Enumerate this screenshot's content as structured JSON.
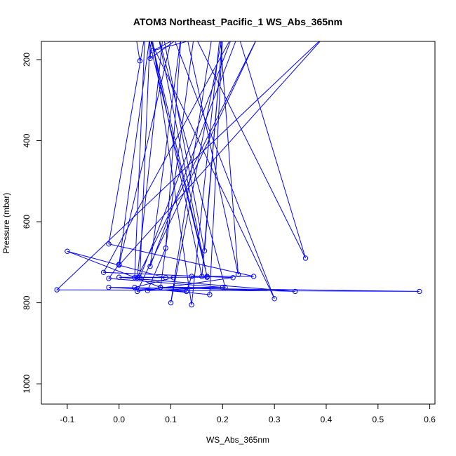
{
  "chart_data": {
    "type": "line",
    "title": "ATOM3 Northeast_Pacific_1 WS_Abs_365nm",
    "xlabel": "WS_Abs_365nm",
    "ylabel": "Pressure (mbar)",
    "xlim": [
      -0.15,
      0.61
    ],
    "ylim": [
      1050,
      155
    ],
    "y_axis_inverted": true,
    "x_ticks": [
      -0.1,
      0.0,
      0.1,
      0.2,
      0.3,
      0.4,
      0.5,
      0.6
    ],
    "x_tick_labels": [
      "-0.1",
      "0.0",
      "0.1",
      "0.2",
      "0.3",
      "0.4",
      "0.5",
      "0.6"
    ],
    "y_ticks": [
      200,
      400,
      600,
      800,
      1000
    ],
    "y_tick_labels": [
      "200",
      "400",
      "600",
      "800",
      "1000"
    ],
    "grid": false,
    "legend": "none",
    "series_color": "#0000ff",
    "series": [
      {
        "points": [
          {
            "x": 0.04,
            "y": 203,
            "marker": true
          },
          {
            "x": 0.032,
            "y": 138,
            "marker": false
          },
          {
            "x": 0.13,
            "y": 138,
            "marker": false
          },
          {
            "x": 0.23,
            "y": 730,
            "marker": true
          },
          {
            "x": 0.195,
            "y": 138,
            "marker": false
          },
          {
            "x": 0.14,
            "y": 805,
            "marker": true
          },
          {
            "x": 0.063,
            "y": 138,
            "marker": false
          },
          {
            "x": 0.06,
            "y": 197,
            "marker": true
          },
          {
            "x": 0.125,
            "y": 138,
            "marker": false
          },
          {
            "x": 0.065,
            "y": 178,
            "marker": true
          },
          {
            "x": 0.18,
            "y": 138,
            "marker": false
          },
          {
            "x": 0.1,
            "y": 800,
            "marker": true
          },
          {
            "x": 0.2,
            "y": 138,
            "marker": false
          },
          {
            "x": 0.16,
            "y": 735,
            "marker": true
          },
          {
            "x": 0.06,
            "y": 138,
            "marker": false
          },
          {
            "x": 0.17,
            "y": 735,
            "marker": true
          },
          {
            "x": 0.055,
            "y": 138,
            "marker": false
          },
          {
            "x": 0.3,
            "y": 790,
            "marker": true
          },
          {
            "x": 0.103,
            "y": 138,
            "marker": false
          },
          {
            "x": 0.0,
            "y": 707,
            "marker": true
          },
          {
            "x": 0.4,
            "y": 138,
            "marker": false
          },
          {
            "x": -0.12,
            "y": 768,
            "marker": true
          },
          {
            "x": 0.58,
            "y": 772,
            "marker": true
          },
          {
            "x": -0.02,
            "y": 762,
            "marker": true
          },
          {
            "x": 0.13,
            "y": 772,
            "marker": true
          },
          {
            "x": 0.14,
            "y": 735,
            "marker": true
          },
          {
            "x": 0.26,
            "y": 735,
            "marker": true
          },
          {
            "x": -0.02,
            "y": 655,
            "marker": true
          },
          {
            "x": 0.05,
            "y": 138,
            "marker": false
          },
          {
            "x": 0.03,
            "y": 738,
            "marker": true
          },
          {
            "x": 0.09,
            "y": 738,
            "marker": true
          },
          {
            "x": -0.1,
            "y": 673,
            "marker": true
          },
          {
            "x": 0.08,
            "y": 762,
            "marker": true
          },
          {
            "x": 0.34,
            "y": 772,
            "marker": true
          },
          {
            "x": 0.0,
            "y": 737,
            "marker": true
          },
          {
            "x": 0.17,
            "y": 737,
            "marker": true
          },
          {
            "x": 0.075,
            "y": 138,
            "marker": false
          },
          {
            "x": 0.205,
            "y": 762,
            "marker": true
          },
          {
            "x": 0.08,
            "y": 762,
            "marker": true
          },
          {
            "x": 0.145,
            "y": 138,
            "marker": false
          },
          {
            "x": 0.36,
            "y": 690,
            "marker": true
          },
          {
            "x": 0.23,
            "y": 138,
            "marker": false
          },
          {
            "x": 0.06,
            "y": 710,
            "marker": true
          },
          {
            "x": 0.12,
            "y": 138,
            "marker": false
          },
          {
            "x": 0.09,
            "y": 665,
            "marker": true
          },
          {
            "x": 0.055,
            "y": 770,
            "marker": true
          },
          {
            "x": 0.2,
            "y": 762,
            "marker": true
          },
          {
            "x": -0.02,
            "y": 740,
            "marker": true
          },
          {
            "x": 0.0,
            "y": 705,
            "marker": true
          },
          {
            "x": 0.06,
            "y": 138,
            "marker": false
          },
          {
            "x": 0.04,
            "y": 738,
            "marker": true
          },
          {
            "x": 0.22,
            "y": 138,
            "marker": false
          },
          {
            "x": -0.03,
            "y": 725,
            "marker": true
          },
          {
            "x": 0.22,
            "y": 738,
            "marker": true
          },
          {
            "x": 0.035,
            "y": 772,
            "marker": true
          },
          {
            "x": 0.27,
            "y": 138,
            "marker": false
          },
          {
            "x": 0.035,
            "y": 738,
            "marker": true
          },
          {
            "x": 0.085,
            "y": 138,
            "marker": false
          },
          {
            "x": 0.165,
            "y": 672,
            "marker": true
          },
          {
            "x": 0.2,
            "y": 138,
            "marker": false
          },
          {
            "x": 0.175,
            "y": 780,
            "marker": true
          },
          {
            "x": 0.03,
            "y": 762,
            "marker": true
          },
          {
            "x": 0.105,
            "y": 738,
            "marker": true
          }
        ]
      }
    ]
  }
}
